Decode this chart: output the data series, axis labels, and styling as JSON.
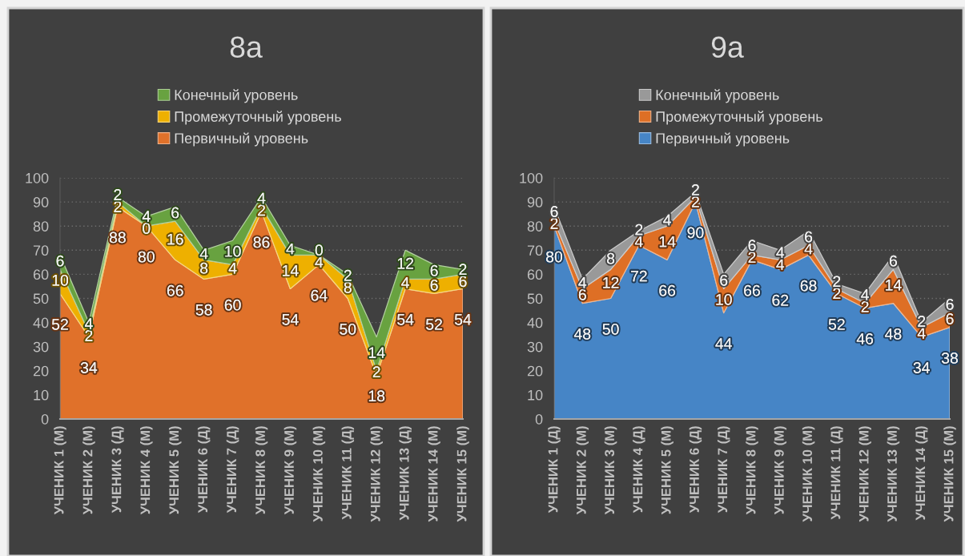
{
  "chart_data": [
    {
      "type": "area",
      "stacked": true,
      "title": "8a",
      "legend": "top",
      "grid": "y",
      "data_labels": true,
      "ylim": [
        0,
        100
      ],
      "yticks": [
        0,
        10,
        20,
        30,
        40,
        50,
        60,
        70,
        80,
        90,
        100
      ],
      "categories": [
        "УЧЕНИК 1 (М)",
        "УЧЕНИК 2 (М)",
        "УЧЕНИК 3 (Д)",
        "УЧЕНИК 4 (М)",
        "УЧЕНИК 5 (М)",
        "УЧЕНИК 6 (Д)",
        "УЧЕНИК 7 (Д)",
        "УЧЕНИК 8 (М)",
        "УЧЕНИК 9 (М)",
        "УЧЕНИК 10 (М)",
        "УЧЕНИК 11 (Д)",
        "УЧЕНИК 12 (М)",
        "УЧЕНИК 13 (Д)",
        "УЧЕНИК 14 (М)",
        "УЧЕНИК 15 (М)"
      ],
      "series": [
        {
          "name": "Первичный уровень",
          "color": "#e0712a",
          "values": [
            52,
            34,
            88,
            80,
            66,
            58,
            60,
            86,
            54,
            64,
            50,
            18,
            54,
            52,
            54
          ]
        },
        {
          "name": "Промежуточный уровень",
          "color": "#eeb000",
          "values": [
            10,
            2,
            2,
            0,
            16,
            8,
            4,
            2,
            14,
            4,
            8,
            2,
            4,
            6,
            6
          ]
        },
        {
          "name": "Конечный уровень",
          "color": "#68a240",
          "values": [
            6,
            4,
            2,
            4,
            6,
            4,
            10,
            4,
            4,
            0,
            2,
            14,
            12,
            6,
            2
          ]
        }
      ]
    },
    {
      "type": "area",
      "stacked": true,
      "title": "9a",
      "legend": "top",
      "grid": "y",
      "data_labels": true,
      "ylim": [
        0,
        100
      ],
      "yticks": [
        0,
        10,
        20,
        30,
        40,
        50,
        60,
        70,
        80,
        90,
        100
      ],
      "categories": [
        "УЧЕНИК 1 (Д)",
        "УЧЕНИК 2 (М)",
        "УЧЕНИК 3 (М)",
        "УЧЕНИК 4 (Д)",
        "УЧЕНИК 5 (М)",
        "УЧЕНИК 6 (Д)",
        "УЧЕНИК 7 (Д)",
        "УЧЕНИК 8 (М)",
        "УЧЕНИК 9 (М)",
        "УЧЕНИК 10 (М)",
        "УЧЕНИК 11 (Д)",
        "УЧЕНИК 12 (М)",
        "УЧЕНИК 13 (М)",
        "УЧЕНИК 14 (Д)",
        "УЧЕНИК 15 (М)"
      ],
      "series": [
        {
          "name": "Первичный уровень",
          "color": "#4685c6",
          "values": [
            80,
            48,
            50,
            72,
            66,
            90,
            44,
            66,
            62,
            68,
            52,
            46,
            48,
            34,
            38
          ]
        },
        {
          "name": "Промежуточный уровень",
          "color": "#de6f25",
          "values": [
            2,
            6,
            12,
            4,
            14,
            2,
            10,
            2,
            4,
            4,
            2,
            2,
            14,
            4,
            6
          ]
        },
        {
          "name": "Конечный уровень",
          "color": "#999999",
          "values": [
            6,
            4,
            8,
            2,
            4,
            2,
            6,
            6,
            4,
            6,
            2,
            4,
            6,
            2,
            6
          ]
        }
      ]
    }
  ]
}
